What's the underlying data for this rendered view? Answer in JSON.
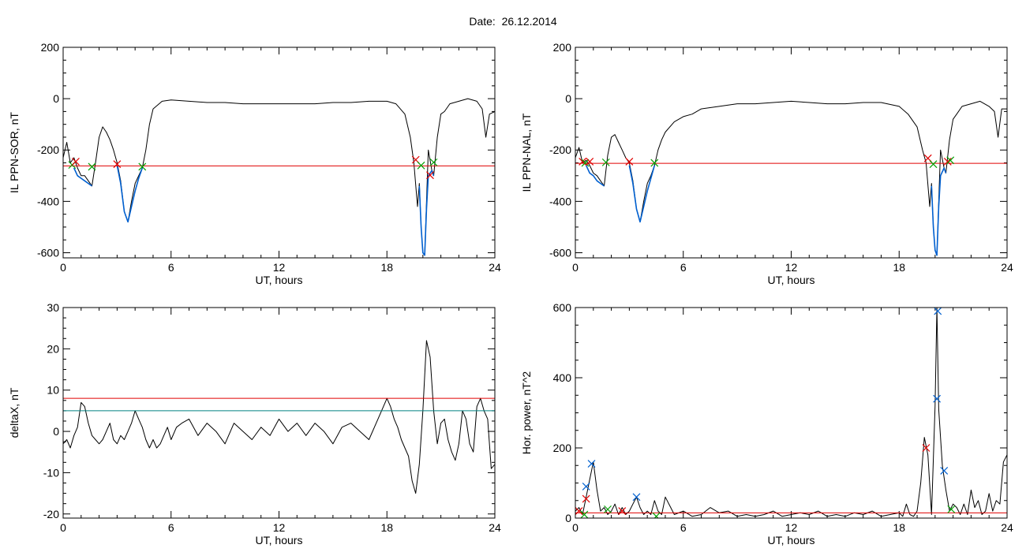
{
  "page": {
    "title": "Date:  26.12.2014"
  },
  "chart_data": [
    {
      "id": "il-sor",
      "type": "line",
      "xlabel": "UT, hours",
      "ylabel": "IL PPN-SOR, nT",
      "xlim": [
        0,
        24
      ],
      "ylim": [
        -620,
        200
      ],
      "xticks": [
        0,
        6,
        12,
        18,
        24
      ],
      "yticks": [
        200,
        0,
        -200,
        -400,
        -600
      ],
      "grid": false,
      "series": [
        {
          "color": "#000000",
          "x": [
            0,
            0.2,
            0.4,
            0.6,
            0.8,
            1.0,
            1.2,
            1.4,
            1.6,
            1.8,
            2.0,
            2.2,
            2.4,
            2.6,
            2.8,
            3.0,
            3.2,
            3.4,
            3.6,
            3.8,
            4.0,
            4.2,
            4.4,
            4.6,
            4.8,
            5.0,
            5.5,
            6,
            7,
            8,
            9,
            10,
            11,
            12,
            13,
            14,
            15,
            16,
            17,
            18,
            18.5,
            19,
            19.3,
            19.5,
            19.7,
            19.8,
            19.9,
            20.0,
            20.1,
            20.2,
            20.3,
            20.5,
            20.6,
            20.8,
            21,
            21.2,
            21.5,
            22,
            22.5,
            23,
            23.3,
            23.5,
            23.7,
            24
          ],
          "y": [
            -230,
            -170,
            -250,
            -230,
            -270,
            -300,
            -300,
            -320,
            -340,
            -250,
            -150,
            -110,
            -130,
            -160,
            -200,
            -250,
            -320,
            -440,
            -480,
            -400,
            -330,
            -300,
            -270,
            -200,
            -100,
            -40,
            -10,
            -5,
            -10,
            -15,
            -15,
            -20,
            -20,
            -20,
            -20,
            -20,
            -15,
            -15,
            -10,
            -10,
            -20,
            -60,
            -150,
            -250,
            -420,
            -330,
            -500,
            -600,
            -610,
            -400,
            -200,
            -280,
            -300,
            -150,
            -60,
            -50,
            -20,
            -10,
            0,
            -10,
            -40,
            -150,
            -60,
            -50
          ]
        },
        {
          "color": "#0060d0",
          "x": [
            0.6,
            0.8,
            1.0,
            1.2,
            1.4,
            1.6
          ],
          "y": [
            -270,
            -300,
            -310,
            -320,
            -330,
            -340
          ]
        },
        {
          "color": "#0060d0",
          "x": [
            3.0,
            3.2,
            3.4,
            3.6,
            3.8,
            4.0,
            4.2,
            4.4
          ],
          "y": [
            -260,
            -330,
            -440,
            -480,
            -420,
            -360,
            -310,
            -270
          ]
        },
        {
          "color": "#0060d0",
          "x": [
            19.8,
            19.9,
            20.0,
            20.1,
            20.2,
            20.3,
            20.5,
            20.6
          ],
          "y": [
            -340,
            -500,
            -600,
            -610,
            -430,
            -300,
            -280,
            -300
          ]
        }
      ],
      "hlines": [
        {
          "y": -262,
          "color": "#e00000"
        }
      ],
      "markers": [
        {
          "x": 0.5,
          "y": -258,
          "color": "#00a000"
        },
        {
          "x": 0.7,
          "y": -245,
          "color": "#e00000"
        },
        {
          "x": 1.6,
          "y": -265,
          "color": "#00a000"
        },
        {
          "x": 3.0,
          "y": -255,
          "color": "#e00000"
        },
        {
          "x": 4.4,
          "y": -265,
          "color": "#00a000"
        },
        {
          "x": 19.6,
          "y": -238,
          "color": "#e00000"
        },
        {
          "x": 19.9,
          "y": -260,
          "color": "#00a000"
        },
        {
          "x": 20.4,
          "y": -298,
          "color": "#e00000"
        },
        {
          "x": 20.6,
          "y": -248,
          "color": "#00a000"
        }
      ]
    },
    {
      "id": "il-nal",
      "type": "line",
      "xlabel": "UT, hours",
      "ylabel": "IL PPN-NAL, nT",
      "xlim": [
        0,
        24
      ],
      "ylim": [
        -620,
        200
      ],
      "xticks": [
        0,
        6,
        12,
        18,
        24
      ],
      "yticks": [
        200,
        0,
        -200,
        -400,
        -600
      ],
      "grid": false,
      "series": [
        {
          "color": "#000000",
          "x": [
            0,
            0.2,
            0.4,
            0.6,
            0.8,
            1.0,
            1.2,
            1.4,
            1.6,
            1.8,
            2.0,
            2.2,
            2.4,
            2.6,
            2.8,
            3.0,
            3.2,
            3.4,
            3.6,
            3.8,
            4.0,
            4.2,
            4.4,
            4.6,
            4.8,
            5.0,
            5.5,
            6,
            6.5,
            7,
            8,
            9,
            10,
            11,
            12,
            13,
            14,
            15,
            16,
            17,
            18,
            18.5,
            19,
            19.3,
            19.5,
            19.7,
            19.8,
            19.9,
            20.0,
            20.1,
            20.2,
            20.3,
            20.5,
            20.6,
            20.8,
            21,
            21.2,
            21.5,
            22,
            22.5,
            23,
            23.3,
            23.5,
            23.7,
            24
          ],
          "y": [
            -230,
            -190,
            -250,
            -240,
            -260,
            -290,
            -300,
            -320,
            -340,
            -220,
            -150,
            -140,
            -170,
            -200,
            -230,
            -250,
            -320,
            -430,
            -480,
            -400,
            -330,
            -300,
            -260,
            -200,
            -160,
            -130,
            -90,
            -70,
            -60,
            -40,
            -30,
            -20,
            -20,
            -15,
            -10,
            -15,
            -20,
            -20,
            -15,
            -15,
            -30,
            -60,
            -110,
            -200,
            -250,
            -420,
            -330,
            -500,
            -590,
            -610,
            -400,
            -200,
            -270,
            -290,
            -160,
            -80,
            -60,
            -30,
            -20,
            -10,
            -30,
            -50,
            -150,
            -40,
            -40
          ]
        },
        {
          "color": "#0060d0",
          "x": [
            0.6,
            0.8,
            1.0,
            1.2,
            1.4,
            1.6
          ],
          "y": [
            -260,
            -290,
            -300,
            -320,
            -330,
            -340
          ]
        },
        {
          "color": "#0060d0",
          "x": [
            3.0,
            3.2,
            3.4,
            3.6,
            3.8,
            4.0,
            4.2,
            4.4
          ],
          "y": [
            -260,
            -330,
            -430,
            -480,
            -420,
            -360,
            -310,
            -260
          ]
        },
        {
          "color": "#0060d0",
          "x": [
            19.8,
            19.9,
            20.0,
            20.1,
            20.2,
            20.3,
            20.5,
            20.6
          ],
          "y": [
            -340,
            -500,
            -590,
            -610,
            -420,
            -300,
            -270,
            -290
          ]
        }
      ],
      "hlines": [
        {
          "y": -252,
          "color": "#e00000"
        }
      ],
      "markers": [
        {
          "x": 0.4,
          "y": -245,
          "color": "#e00000"
        },
        {
          "x": 0.55,
          "y": -250,
          "color": "#00a000"
        },
        {
          "x": 0.8,
          "y": -245,
          "color": "#e00000"
        },
        {
          "x": 1.7,
          "y": -248,
          "color": "#00a000"
        },
        {
          "x": 3.0,
          "y": -245,
          "color": "#e00000"
        },
        {
          "x": 4.4,
          "y": -250,
          "color": "#00a000"
        },
        {
          "x": 19.6,
          "y": -232,
          "color": "#e00000"
        },
        {
          "x": 19.9,
          "y": -255,
          "color": "#00a000"
        },
        {
          "x": 20.7,
          "y": -245,
          "color": "#e00000"
        },
        {
          "x": 20.85,
          "y": -240,
          "color": "#00a000"
        }
      ]
    },
    {
      "id": "deltax",
      "type": "line",
      "xlabel": "UT, hours",
      "ylabel": "deltaX, nT",
      "xlim": [
        0,
        24
      ],
      "ylim": [
        -21,
        30
      ],
      "xticks": [
        0,
        6,
        12,
        18,
        24
      ],
      "yticks": [
        30,
        20,
        10,
        0,
        -10,
        -20
      ],
      "grid": false,
      "series": [
        {
          "color": "#000000",
          "x": [
            0,
            0.2,
            0.4,
            0.6,
            0.8,
            1.0,
            1.2,
            1.4,
            1.6,
            1.8,
            2.0,
            2.2,
            2.4,
            2.6,
            2.8,
            3.0,
            3.2,
            3.4,
            3.6,
            3.8,
            4.0,
            4.2,
            4.4,
            4.6,
            4.8,
            5.0,
            5.2,
            5.4,
            5.6,
            5.8,
            6.0,
            6.3,
            6.6,
            7,
            7.5,
            8,
            8.5,
            9,
            9.5,
            10,
            10.5,
            11,
            11.5,
            12,
            12.5,
            13,
            13.5,
            14,
            14.5,
            15,
            15.5,
            16,
            16.5,
            17,
            17.5,
            18,
            18.2,
            18.4,
            18.6,
            18.8,
            19,
            19.2,
            19.4,
            19.6,
            19.8,
            20,
            20.2,
            20.4,
            20.6,
            20.8,
            21,
            21.2,
            21.4,
            21.6,
            21.8,
            22,
            22.2,
            22.4,
            22.6,
            22.8,
            23,
            23.2,
            23.4,
            23.6,
            23.8,
            24
          ],
          "y": [
            -3,
            -2,
            -4,
            -1,
            1,
            7,
            6,
            2,
            -1,
            -2,
            -3,
            -2,
            0,
            2,
            -2,
            -3,
            -1,
            -2,
            0,
            2,
            5,
            3,
            1,
            -2,
            -4,
            -2,
            -4,
            -3,
            -1,
            1,
            -2,
            1,
            2,
            3,
            -1,
            2,
            0,
            -3,
            2,
            0,
            -2,
            1,
            -1,
            3,
            0,
            2,
            -1,
            2,
            0,
            -3,
            1,
            2,
            0,
            -2,
            3,
            8,
            6,
            3,
            1,
            -2,
            -4,
            -6,
            -12,
            -15,
            -8,
            5,
            22,
            18,
            5,
            -3,
            2,
            3,
            -2,
            -5,
            -7,
            -3,
            5,
            3,
            -3,
            -5,
            6,
            8,
            5,
            3,
            -9,
            -8
          ]
        }
      ],
      "hlines": [
        {
          "y": 8,
          "color": "#e00000"
        },
        {
          "y": 5,
          "color": "#008080"
        }
      ],
      "markers": []
    },
    {
      "id": "hor-power",
      "type": "line",
      "xlabel": "UT, hours",
      "ylabel": "Hor. power, nT^2",
      "xlim": [
        0,
        24
      ],
      "ylim": [
        0,
        600
      ],
      "xticks": [
        0,
        6,
        12,
        18,
        24
      ],
      "yticks": [
        600,
        400,
        200,
        0
      ],
      "grid": false,
      "series": [
        {
          "color": "#000000",
          "x": [
            0,
            0.2,
            0.4,
            0.6,
            0.8,
            1.0,
            1.2,
            1.4,
            1.6,
            1.8,
            2.0,
            2.2,
            2.4,
            2.6,
            2.8,
            3.0,
            3.2,
            3.4,
            3.6,
            3.8,
            4.0,
            4.2,
            4.4,
            4.6,
            4.8,
            5.0,
            5.5,
            6,
            6.5,
            7,
            7.5,
            8,
            8.5,
            9,
            9.5,
            10,
            10.5,
            11,
            11.5,
            12,
            12.5,
            13,
            13.5,
            14,
            14.5,
            15,
            15.5,
            16,
            16.5,
            17,
            17.5,
            18,
            18.2,
            18.4,
            18.6,
            18.8,
            19,
            19.2,
            19.4,
            19.6,
            19.8,
            20,
            20.1,
            20.2,
            20.4,
            20.6,
            20.8,
            21,
            21.2,
            21.4,
            21.6,
            21.8,
            22,
            22.2,
            22.4,
            22.6,
            22.8,
            23,
            23.2,
            23.4,
            23.6,
            23.8,
            24
          ],
          "y": [
            20,
            30,
            10,
            60,
            110,
            160,
            80,
            20,
            30,
            10,
            20,
            40,
            10,
            30,
            10,
            20,
            40,
            60,
            30,
            10,
            20,
            10,
            50,
            20,
            10,
            60,
            10,
            20,
            5,
            10,
            30,
            15,
            20,
            5,
            10,
            5,
            10,
            20,
            5,
            10,
            15,
            10,
            20,
            5,
            10,
            5,
            15,
            10,
            20,
            5,
            10,
            15,
            5,
            40,
            10,
            5,
            20,
            100,
            230,
            180,
            10,
            320,
            600,
            310,
            150,
            80,
            20,
            40,
            30,
            10,
            40,
            10,
            80,
            30,
            50,
            10,
            20,
            70,
            20,
            50,
            40,
            160,
            180
          ]
        }
      ],
      "hlines": [
        {
          "y": 15,
          "color": "#e00000"
        }
      ],
      "markers": [
        {
          "x": 0.2,
          "y": 20,
          "color": "#e00000"
        },
        {
          "x": 0.5,
          "y": 10,
          "color": "#00a000"
        },
        {
          "x": 0.6,
          "y": 55,
          "color": "#e00000"
        },
        {
          "x": 0.6,
          "y": 90,
          "color": "#0060d0"
        },
        {
          "x": 0.9,
          "y": 155,
          "color": "#0060d0"
        },
        {
          "x": 1.8,
          "y": 25,
          "color": "#00a000"
        },
        {
          "x": 2.6,
          "y": 20,
          "color": "#e00000"
        },
        {
          "x": 3.4,
          "y": 60,
          "color": "#0060d0"
        },
        {
          "x": 4.5,
          "y": 5,
          "color": "#00a000"
        },
        {
          "x": 19.5,
          "y": 200,
          "color": "#e00000"
        },
        {
          "x": 20.1,
          "y": 340,
          "color": "#0060d0"
        },
        {
          "x": 20.15,
          "y": 590,
          "color": "#0060d0"
        },
        {
          "x": 20.5,
          "y": 135,
          "color": "#0060d0"
        },
        {
          "x": 20.9,
          "y": 25,
          "color": "#00a000"
        }
      ]
    }
  ]
}
